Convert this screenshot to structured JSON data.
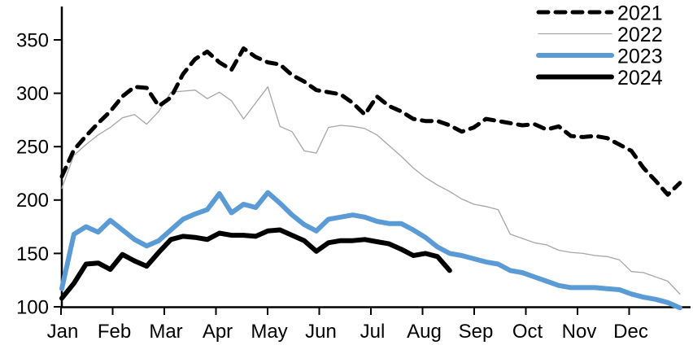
{
  "chart_data": {
    "type": "line",
    "title": "",
    "xlabel": "",
    "ylabel": "",
    "x_unit": "weekly points, Jan through Dec",
    "x_tick_labels": [
      "Jan",
      "Feb",
      "Mar",
      "Apr",
      "May",
      "Jun",
      "Jul",
      "Aug",
      "Sep",
      "Oct",
      "Nov",
      "Dec"
    ],
    "y_tick_labels": [
      "100",
      "150",
      "200",
      "250",
      "300",
      "350"
    ],
    "y_ticks": [
      100,
      150,
      200,
      250,
      300,
      350
    ],
    "ylim": [
      100,
      360
    ],
    "grid": false,
    "legend_position": "top-right",
    "axis_color": "#000000",
    "background_color": "#ffffff",
    "series": [
      {
        "name": "2021",
        "color": "#000000",
        "dashed": true,
        "width": 5,
        "values": [
          222,
          247,
          260,
          272,
          283,
          297,
          306,
          305,
          288,
          296,
          318,
          332,
          339,
          329,
          322,
          342,
          334,
          329,
          327,
          317,
          311,
          303,
          301,
          299,
          291,
          280,
          297,
          288,
          283,
          276,
          274,
          274,
          270,
          264,
          268,
          276,
          274,
          272,
          270,
          271,
          266,
          269,
          260,
          259,
          260,
          258,
          252,
          246,
          230,
          218,
          205,
          216
        ]
      },
      {
        "name": "2022",
        "color": "#a6a6a6",
        "dashed": false,
        "width": 1.3,
        "values": [
          211,
          242,
          252,
          261,
          268,
          277,
          280,
          271,
          283,
          301,
          302,
          303,
          295,
          301,
          293,
          276,
          291,
          306,
          269,
          264,
          246,
          244,
          268,
          270,
          269,
          267,
          261,
          251,
          241,
          230,
          221,
          214,
          208,
          201,
          196,
          194,
          191,
          168,
          164,
          160,
          158,
          153,
          151,
          150,
          148,
          147,
          144,
          133,
          132,
          128,
          124,
          112
        ]
      },
      {
        "name": "2023",
        "color": "#5b9bd5",
        "dashed": false,
        "width": 6,
        "values": [
          117,
          168,
          175,
          170,
          181,
          172,
          163,
          157,
          162,
          172,
          182,
          187,
          191,
          206,
          188,
          196,
          193,
          207,
          197,
          186,
          177,
          171,
          182,
          184,
          186,
          184,
          180,
          178,
          178,
          172,
          165,
          156,
          150,
          148,
          145,
          142,
          140,
          134,
          132,
          128,
          124,
          120,
          118,
          118,
          118,
          117,
          116,
          112,
          109,
          107,
          104,
          99
        ]
      },
      {
        "name": "2024",
        "color": "#000000",
        "dashed": false,
        "width": 6,
        "values": [
          108,
          122,
          140,
          141,
          135,
          149,
          143,
          138,
          151,
          163,
          166,
          165,
          163,
          169,
          167,
          167,
          166,
          171,
          172,
          167,
          162,
          152,
          160,
          162,
          162,
          163,
          161,
          159,
          154,
          148,
          150,
          147,
          134
        ]
      }
    ],
    "legend": [
      "2021",
      "2022",
      "2023",
      "2024"
    ]
  }
}
